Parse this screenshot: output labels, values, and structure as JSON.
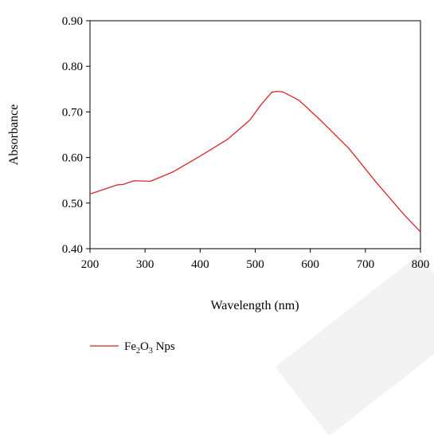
{
  "chart_data": {
    "type": "line",
    "xlabel": "Wavelength (nm)",
    "ylabel": "Absorbance",
    "xlim": [
      200,
      800
    ],
    "ylim": [
      0.4,
      0.9
    ],
    "xticks": [
      "200",
      "300",
      "400",
      "500",
      "600",
      "700",
      "800"
    ],
    "yticks": [
      "0.40",
      "0.50",
      "0.60",
      "0.70",
      "0.80",
      "0.90"
    ],
    "grid": false,
    "legend_position": "bottom-left",
    "series": [
      {
        "name": "Fe2O3 Nps",
        "color": "#d62728",
        "x": [
          200,
          250,
          260,
          280,
          310,
          350,
          400,
          450,
          490,
          510,
          530,
          540,
          550,
          580,
          620,
          670,
          720,
          770,
          800
        ],
        "y": [
          0.52,
          0.54,
          0.541,
          0.549,
          0.548,
          0.568,
          0.603,
          0.64,
          0.682,
          0.715,
          0.743,
          0.745,
          0.744,
          0.725,
          0.68,
          0.62,
          0.545,
          0.475,
          0.437
        ]
      }
    ]
  },
  "legend": {
    "prefix": "Fe",
    "sub1": "2",
    "mid": "O",
    "sub2": "3",
    "suffix": " Nps"
  }
}
